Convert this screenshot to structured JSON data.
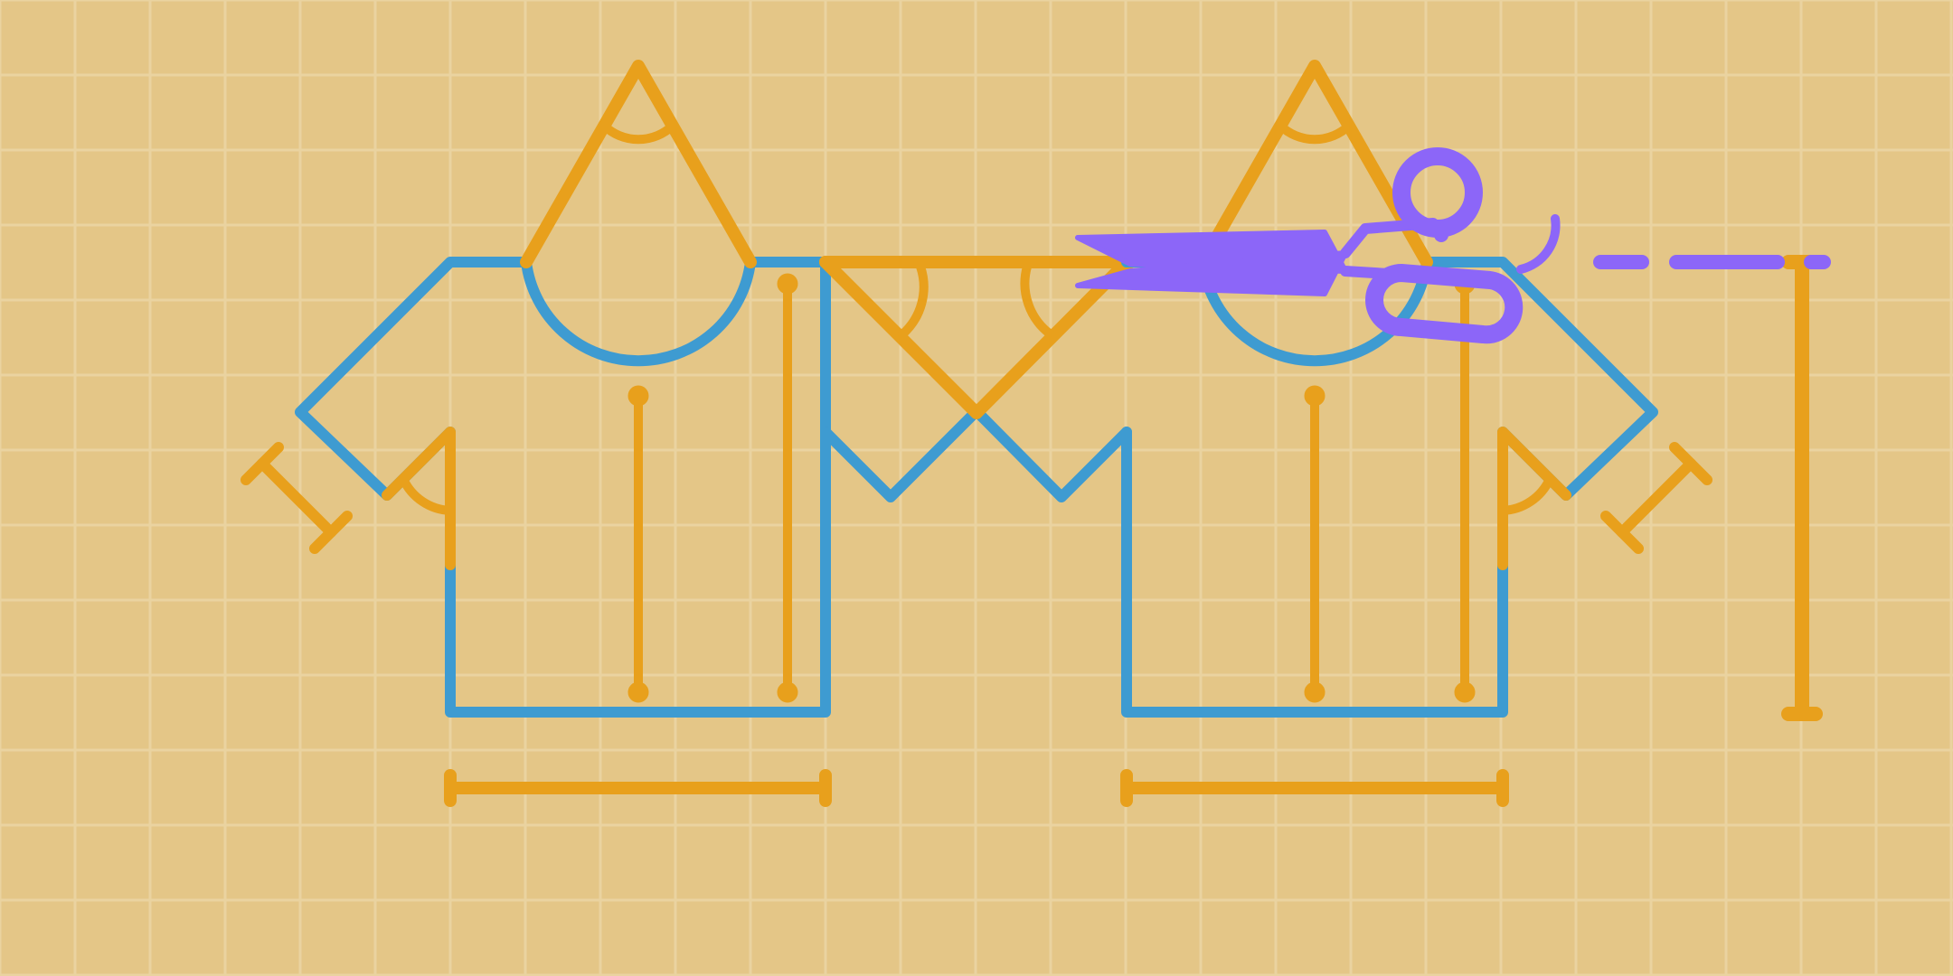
{
  "colors": {
    "background": "#e4c687",
    "grid": "#ead3a0",
    "garment_outline": "#3e9bd1",
    "construction": "#e8a01c",
    "scissors": "#8c66f8"
  },
  "icons": [
    "pattern-grid",
    "t-shirt-front-pattern",
    "t-shirt-back-pattern",
    "scissors-icon",
    "cut-line",
    "measurement-guides"
  ]
}
